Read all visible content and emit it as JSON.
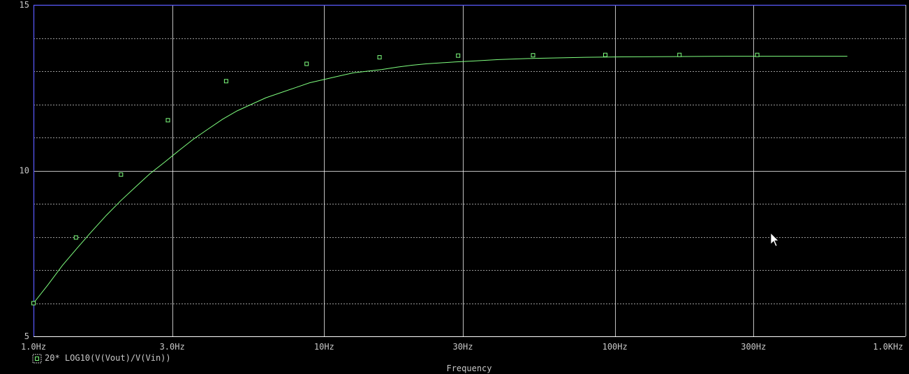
{
  "window": {
    "background": "#000000",
    "grid_color": "#ffffff",
    "axis_color": "#5a5aff",
    "trace_color": "#7fff7f"
  },
  "chart_data": {
    "type": "line",
    "title": "",
    "xlabel": "Frequency",
    "ylabel": "",
    "xscale": "log",
    "xlim": [
      1,
      1000
    ],
    "ylim": [
      5,
      15
    ],
    "grid": true,
    "x_ticks": [
      {
        "value": 1,
        "label": "1.0Hz"
      },
      {
        "value": 3,
        "label": "3.0Hz"
      },
      {
        "value": 10,
        "label": "10Hz"
      },
      {
        "value": 30,
        "label": "30Hz"
      },
      {
        "value": 100,
        "label": "100Hz"
      },
      {
        "value": 300,
        "label": "300Hz"
      },
      {
        "value": 1000,
        "label": "1.0KHz"
      }
    ],
    "y_ticks": [
      {
        "value": 5,
        "label": "5"
      },
      {
        "value": 10,
        "label": "10"
      },
      {
        "value": 15,
        "label": "15"
      }
    ],
    "y_minor": [
      6,
      7,
      8,
      9,
      11,
      12,
      13,
      14
    ],
    "legend": {
      "placement": "bottom-left",
      "marker": "square",
      "label": "20* LOG10(V(Vout)/V(Vin))"
    },
    "series": [
      {
        "name": "20* LOG10(V(Vout)/V(Vin))",
        "points": [
          [
            1.0,
            6.0
          ],
          [
            1.12,
            6.55
          ],
          [
            1.26,
            7.15
          ],
          [
            1.41,
            7.65
          ],
          [
            1.58,
            8.15
          ],
          [
            1.78,
            8.65
          ],
          [
            2.0,
            9.1
          ],
          [
            2.24,
            9.5
          ],
          [
            2.51,
            9.9
          ],
          [
            2.82,
            10.25
          ],
          [
            3.16,
            10.6
          ],
          [
            3.55,
            10.95
          ],
          [
            3.98,
            11.25
          ],
          [
            4.47,
            11.55
          ],
          [
            5.01,
            11.8
          ],
          [
            5.62,
            12.0
          ],
          [
            6.31,
            12.2
          ],
          [
            7.08,
            12.35
          ],
          [
            7.94,
            12.5
          ],
          [
            8.91,
            12.65
          ],
          [
            10.0,
            12.75
          ],
          [
            11.2,
            12.85
          ],
          [
            12.6,
            12.95
          ],
          [
            14.1,
            13.0
          ],
          [
            15.8,
            13.05
          ],
          [
            17.8,
            13.12
          ],
          [
            20.0,
            13.18
          ],
          [
            22.4,
            13.22
          ],
          [
            25.1,
            13.25
          ],
          [
            28.2,
            13.28
          ],
          [
            31.6,
            13.3
          ],
          [
            39.8,
            13.35
          ],
          [
            50.1,
            13.38
          ],
          [
            63.1,
            13.4
          ],
          [
            79.4,
            13.42
          ],
          [
            100,
            13.43
          ],
          [
            158,
            13.44
          ],
          [
            251,
            13.45
          ],
          [
            398,
            13.45
          ],
          [
            631,
            13.45
          ]
        ],
        "markers": [
          [
            1.0,
            6.0
          ],
          [
            1.4,
            7.98
          ],
          [
            2.0,
            9.88
          ],
          [
            2.9,
            11.52
          ],
          [
            4.6,
            12.7
          ],
          [
            8.7,
            13.22
          ],
          [
            15.5,
            13.42
          ],
          [
            28.9,
            13.47
          ],
          [
            52.3,
            13.48
          ],
          [
            92.7,
            13.49
          ],
          [
            166.8,
            13.49
          ],
          [
            308.9,
            13.49
          ]
        ]
      }
    ]
  }
}
